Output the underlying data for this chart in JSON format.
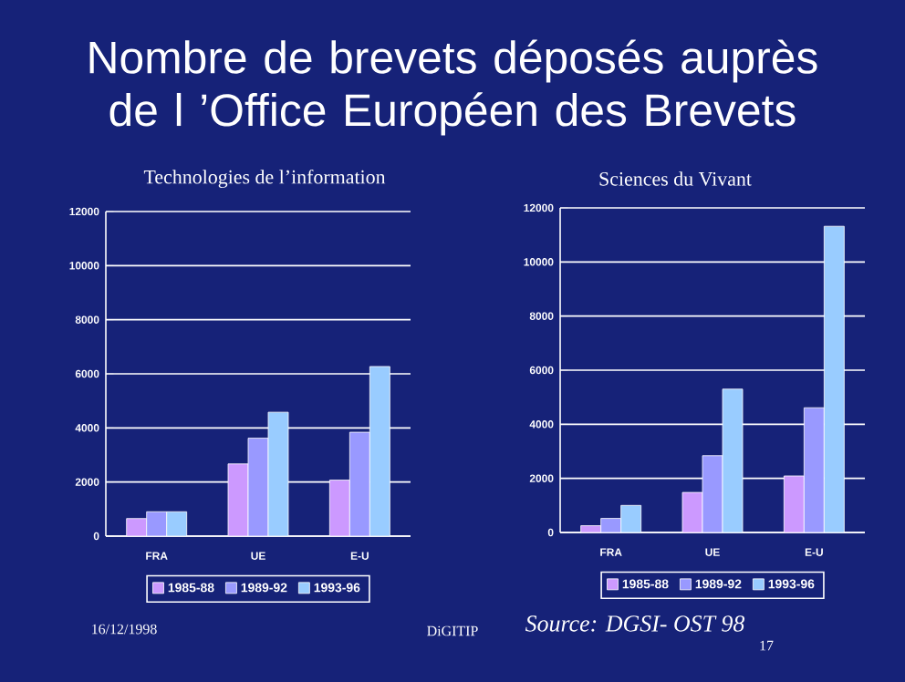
{
  "chart_data": [
    {
      "type": "bar",
      "title": "Technologies de l’information",
      "categories": [
        "FRA",
        "UE",
        "E-U"
      ],
      "series": [
        {
          "name": "1985-88",
          "color": "#cc99ff",
          "values": [
            650,
            2670,
            2070
          ]
        },
        {
          "name": "1989-92",
          "color": "#9999ff",
          "values": [
            900,
            3620,
            3840
          ]
        },
        {
          "name": "1993-96",
          "color": "#99ccff",
          "values": [
            900,
            4580,
            6270
          ]
        }
      ],
      "ylim": [
        0,
        12000
      ],
      "yticks": [
        0,
        2000,
        4000,
        6000,
        8000,
        10000,
        12000
      ],
      "grid": "y",
      "legend": "bottom",
      "annotations": [
        "Nombre de brevets déposés auprès de l ’Office Européen des Brevets",
        "16/12/1998",
        "DiGITIP",
        "Source: DGSI- OST 98",
        "17"
      ]
    },
    {
      "type": "bar",
      "title": "Sciences du Vivant",
      "categories": [
        "FRA",
        "UE",
        "E-U"
      ],
      "series": [
        {
          "name": "1985-88",
          "color": "#cc99ff",
          "values": [
            250,
            1480,
            2090
          ]
        },
        {
          "name": "1989-92",
          "color": "#9999ff",
          "values": [
            520,
            2840,
            4610
          ]
        },
        {
          "name": "1993-96",
          "color": "#99ccff",
          "values": [
            1000,
            5300,
            11320
          ]
        }
      ],
      "ylim": [
        0,
        12000
      ],
      "yticks": [
        0,
        2000,
        4000,
        6000,
        8000,
        10000,
        12000
      ],
      "grid": "y",
      "legend": "bottom"
    }
  ]
}
